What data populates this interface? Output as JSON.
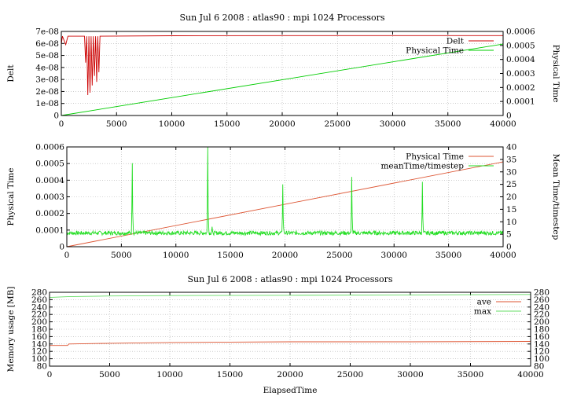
{
  "colors": {
    "red": "#cc0000",
    "green": "#00cc00",
    "green2": "#22dd22",
    "orange": "#dd5533",
    "lightgreen": "#66dd66"
  },
  "chart_data": [
    {
      "type": "line",
      "title": "Sun Jul 6 2008 : atlas90 : mpi 1024 Processors",
      "xlabel": "",
      "ylabel": "Delt",
      "y2label": "Physical Time",
      "xlim": [
        0,
        40000
      ],
      "ylim": [
        0,
        7e-08
      ],
      "y2lim": [
        0,
        0.0006
      ],
      "xticks": [
        "0",
        "5000",
        "10000",
        "15000",
        "20000",
        "25000",
        "30000",
        "35000",
        "40000"
      ],
      "yticks": [
        "0",
        "1e-08",
        "2e-08",
        "3e-08",
        "4e-08",
        "5e-08",
        "6e-08",
        "7e-08"
      ],
      "y2ticks": [
        "0",
        "0.0001",
        "0.0002",
        "0.0003",
        "0.0004",
        "0.0005",
        "0.0006"
      ],
      "legend": "top-right",
      "grid": true,
      "series": [
        {
          "name": "Delt",
          "axis": "y",
          "color": "#cc0000",
          "points": [
            [
              0,
              5.9e-08
            ],
            [
              100,
              6.6e-08
            ],
            [
              400,
              5.9e-08
            ],
            [
              600,
              6.6e-08
            ],
            [
              2100,
              6.6e-08
            ],
            [
              2200,
              4.4e-08
            ],
            [
              2300,
              6.6e-08
            ],
            [
              2400,
              1.7e-08
            ],
            [
              2500,
              6.6e-08
            ],
            [
              2600,
              1.9e-08
            ],
            [
              2700,
              6.6e-08
            ],
            [
              2800,
              2.5e-08
            ],
            [
              2900,
              6.6e-08
            ],
            [
              3000,
              3.3e-08
            ],
            [
              3100,
              6.6e-08
            ],
            [
              3200,
              2.8e-08
            ],
            [
              3300,
              6.6e-08
            ],
            [
              3400,
              3.6e-08
            ],
            [
              3500,
              6.6e-08
            ],
            [
              10000,
              6.64e-08
            ],
            [
              20000,
              6.65e-08
            ],
            [
              30000,
              6.65e-08
            ],
            [
              40000,
              6.65e-08
            ]
          ]
        },
        {
          "name": "Physical Time",
          "axis": "y2",
          "color": "#00cc00",
          "points": [
            [
              0,
              0
            ],
            [
              40000,
              0.00051
            ]
          ]
        }
      ]
    },
    {
      "type": "line",
      "title": "",
      "xlabel": "",
      "ylabel": "Physical Time",
      "y2label": "Mean Time/timestep",
      "xlim": [
        0,
        40000
      ],
      "ylim": [
        0,
        0.0006
      ],
      "y2lim": [
        0,
        40
      ],
      "xticks": [
        "0",
        "5000",
        "10000",
        "15000",
        "20000",
        "25000",
        "30000",
        "35000",
        "40000"
      ],
      "yticks": [
        "0",
        "0.0001",
        "0.0002",
        "0.0003",
        "0.0004",
        "0.0005",
        "0.0006"
      ],
      "y2ticks": [
        "0",
        "5",
        "10",
        "15",
        "20",
        "25",
        "30",
        "35",
        "40"
      ],
      "legend": "top-right",
      "grid": true,
      "series": [
        {
          "name": "Physical Time",
          "axis": "y",
          "color": "#dd5533",
          "points": [
            [
              0,
              0
            ],
            [
              40000,
              0.00051
            ]
          ]
        },
        {
          "name": "meanTime/timestep",
          "axis": "y2",
          "color": "#22dd22",
          "baseline": 5.5,
          "spikes": [
            [
              6000,
              33.5
            ],
            [
              12900,
              40
            ],
            [
              13300,
              8
            ],
            [
              19800,
              25
            ],
            [
              26100,
              28
            ],
            [
              32600,
              26
            ]
          ]
        }
      ]
    },
    {
      "type": "line",
      "title": "Sun Jul 6 2008 : atlas90 : mpi 1024 Processors",
      "xlabel": "ElapsedTime",
      "ylabel": "Memory usage [MB]",
      "y2label": "",
      "xlim": [
        0,
        40000
      ],
      "ylim": [
        80,
        280
      ],
      "y2lim": [
        80,
        280
      ],
      "xticks": [
        "0",
        "5000",
        "10000",
        "15000",
        "20000",
        "25000",
        "30000",
        "35000",
        "40000"
      ],
      "yticks": [
        "80",
        "100",
        "120",
        "140",
        "160",
        "180",
        "200",
        "220",
        "240",
        "260",
        "280"
      ],
      "y2ticks": [
        "80",
        "100",
        "120",
        "140",
        "160",
        "180",
        "200",
        "220",
        "240",
        "260",
        "280"
      ],
      "legend": "top-right",
      "grid": true,
      "series": [
        {
          "name": "ave",
          "axis": "y",
          "color": "#dd5533",
          "points": [
            [
              0,
              136
            ],
            [
              1500,
              136
            ],
            [
              1600,
              140
            ],
            [
              5000,
              142
            ],
            [
              10000,
              144
            ],
            [
              15000,
              145
            ],
            [
              20000,
              146
            ],
            [
              30000,
              146
            ],
            [
              40000,
              147
            ]
          ]
        },
        {
          "name": "max",
          "axis": "y",
          "color": "#66dd66",
          "points": [
            [
              0,
              266
            ],
            [
              1500,
              268
            ],
            [
              5000,
              270
            ],
            [
              10000,
              271
            ],
            [
              20000,
              272
            ],
            [
              30000,
              273
            ],
            [
              40000,
              274
            ]
          ]
        }
      ]
    }
  ]
}
